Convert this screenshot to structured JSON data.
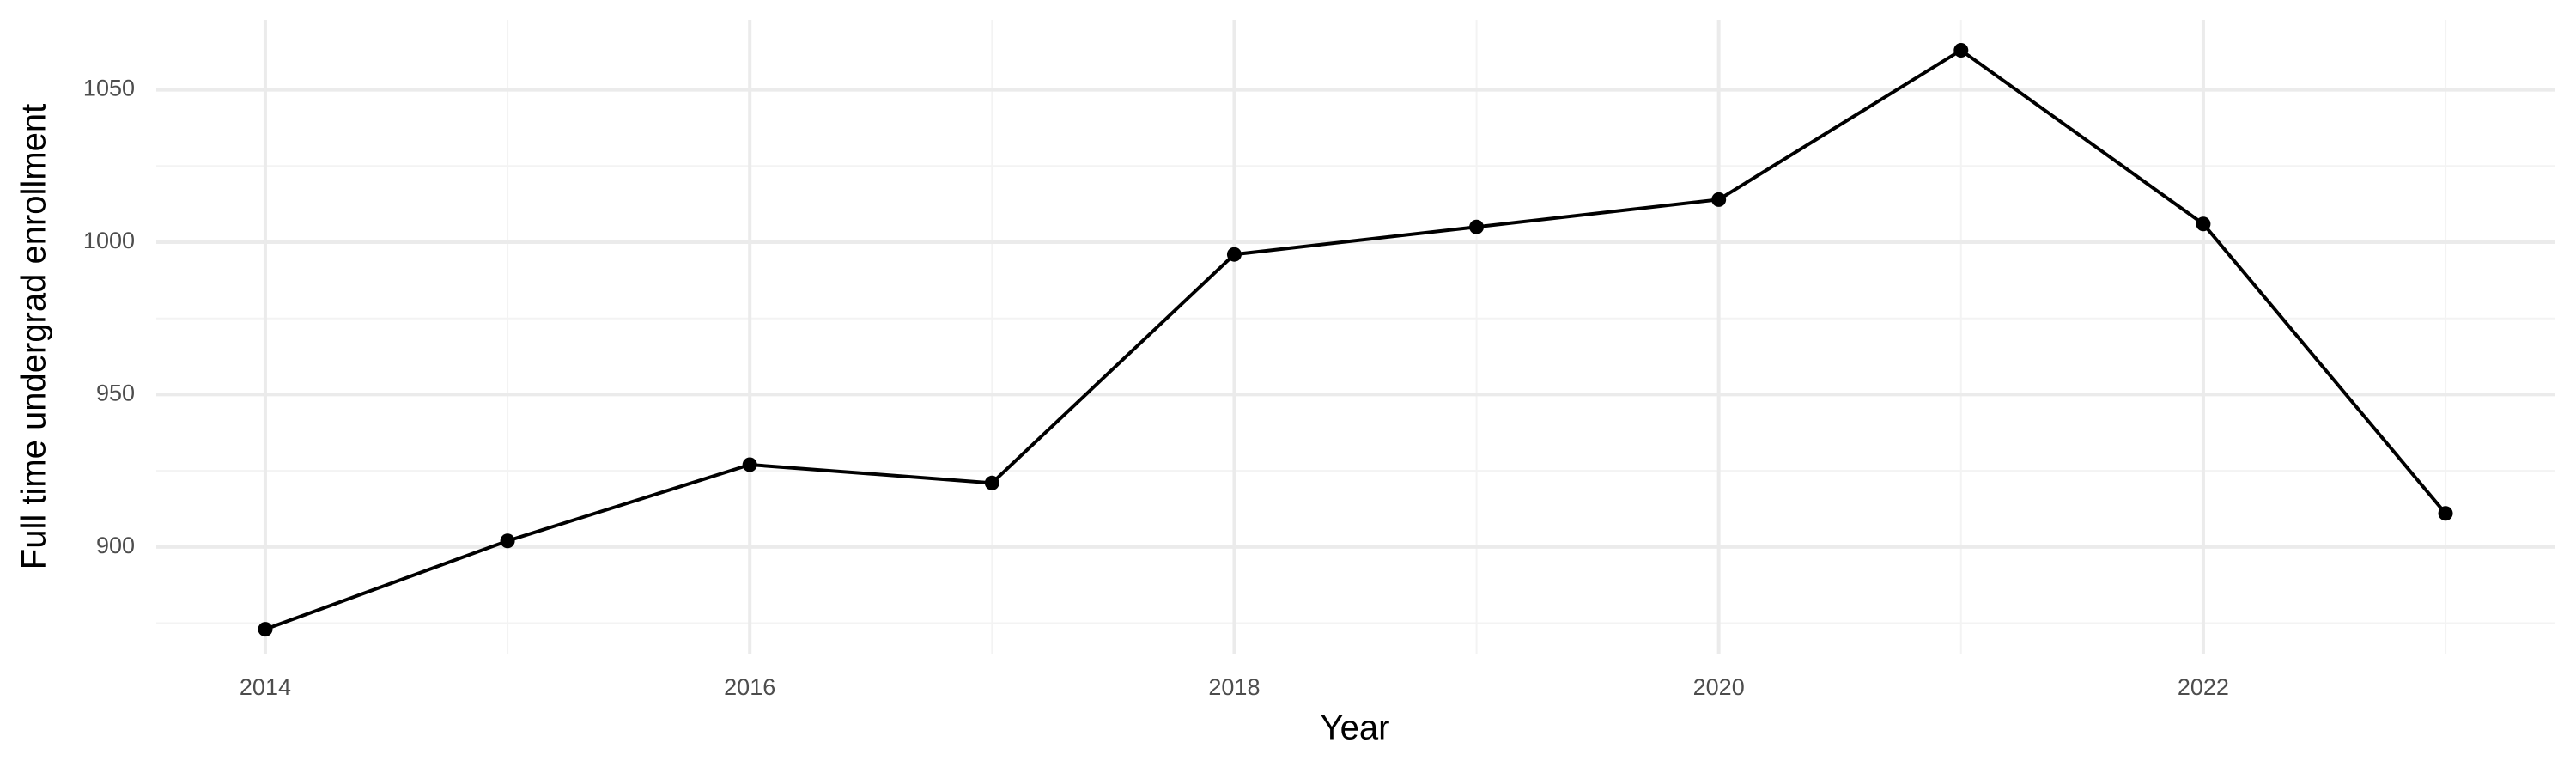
{
  "chart_data": {
    "type": "line",
    "x_label": "Year",
    "y_label": "Full time undergrad enrollment",
    "x": [
      2014,
      2015,
      2016,
      2017,
      2018,
      2019,
      2020,
      2021,
      2022,
      2023
    ],
    "series": [
      {
        "color": "#000000",
        "values": [
          873,
          902,
          927,
          921,
          996,
          1005,
          1014,
          1063,
          1006,
          911
        ]
      }
    ],
    "xlim": [
      2013.55,
      2023.45
    ],
    "xticks": [
      2014,
      2016,
      2018,
      2020,
      2022
    ],
    "xminor": [
      2015,
      2017,
      2019,
      2021,
      2023
    ],
    "ylim": [
      865,
      1073
    ],
    "yticks": [
      900,
      950,
      1000,
      1050
    ],
    "yminor": [
      875,
      925,
      975,
      1025
    ],
    "grid": true
  }
}
